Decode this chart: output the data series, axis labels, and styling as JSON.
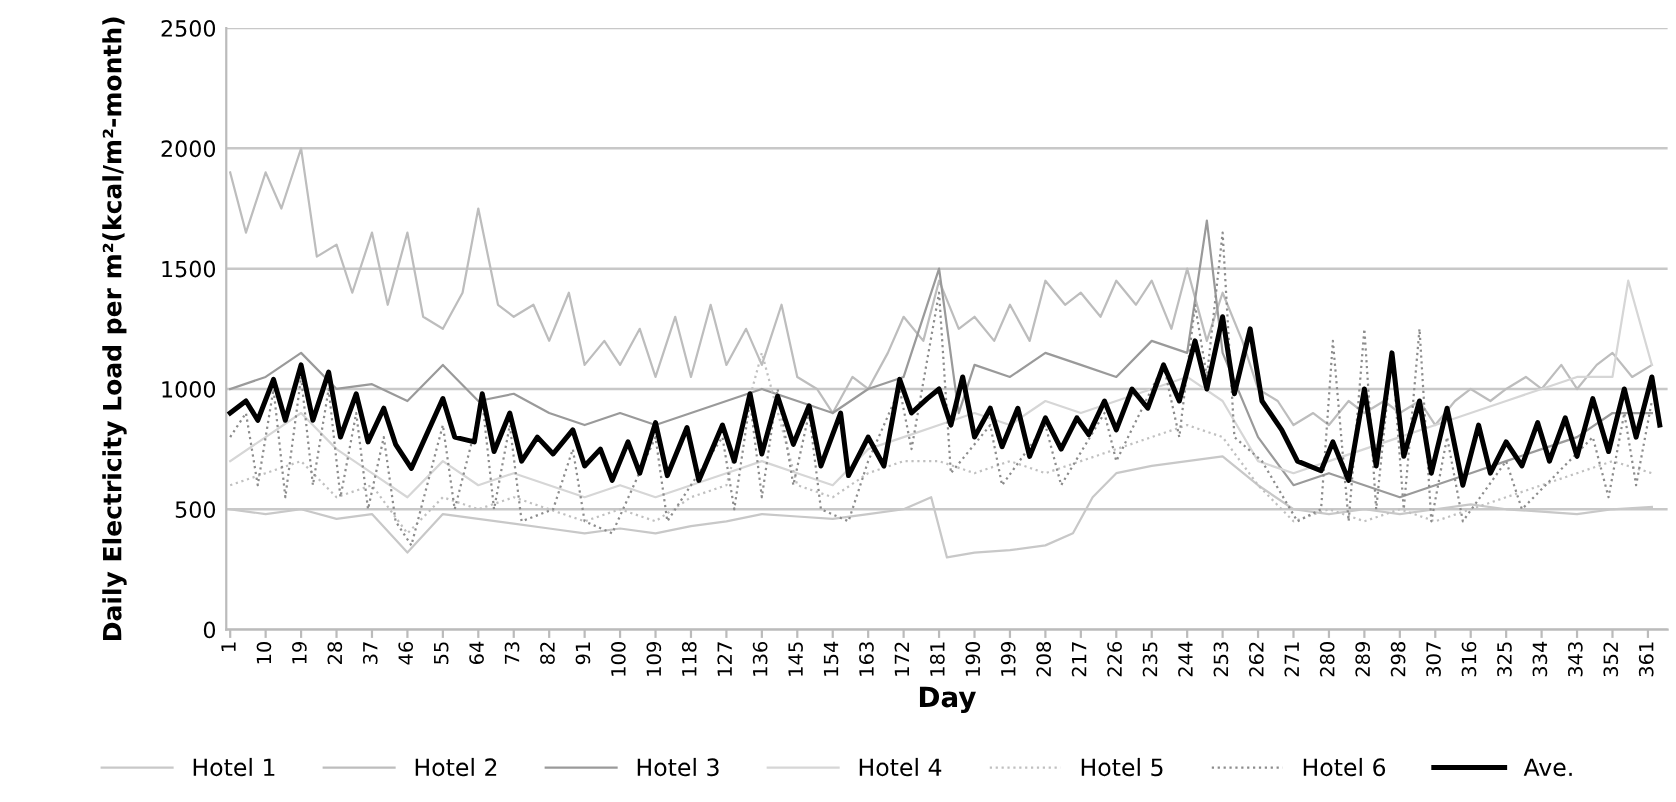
{
  "chart_data": {
    "type": "line",
    "xlabel": "Day",
    "ylabel": "Daily Electricity Load per m²(kcal/m²-month)",
    "xlim": [
      0,
      366
    ],
    "xticks": [
      1,
      10,
      19,
      28,
      37,
      46,
      55,
      64,
      73,
      82,
      91,
      100,
      109,
      118,
      127,
      136,
      145,
      154,
      163,
      172,
      181,
      190,
      199,
      208,
      217,
      226,
      235,
      244,
      253,
      262,
      271,
      280,
      289,
      298,
      307,
      316,
      325,
      334,
      343,
      352,
      361
    ],
    "ylim": [
      0,
      2500
    ],
    "yticks": [
      0,
      500,
      1000,
      1500,
      2000,
      2500
    ],
    "grid": "y",
    "legend": "bottom",
    "series": [
      {
        "name": "Hotel 1",
        "color": "#c8c8c8",
        "line_style": "solid",
        "x": [
          1,
          10,
          19,
          28,
          37,
          46,
          55,
          64,
          73,
          82,
          91,
          100,
          109,
          118,
          127,
          136,
          145,
          154,
          163,
          172,
          179,
          183,
          190,
          199,
          208,
          215,
          220,
          226,
          235,
          244,
          253,
          262,
          271,
          280,
          289,
          298,
          307,
          316,
          325,
          334,
          343,
          352,
          362
        ],
        "values": [
          500,
          480,
          500,
          460,
          480,
          320,
          480,
          460,
          440,
          420,
          400,
          420,
          400,
          430,
          450,
          480,
          470,
          460,
          480,
          500,
          550,
          300,
          320,
          330,
          350,
          400,
          550,
          650,
          680,
          700,
          720,
          600,
          500,
          480,
          500,
          480,
          500,
          520,
          500,
          490,
          480,
          500,
          510
        ]
      },
      {
        "name": "Hotel 2",
        "color": "#bdbdbd",
        "line_style": "solid",
        "x": [
          1,
          5,
          10,
          14,
          19,
          23,
          28,
          32,
          37,
          41,
          46,
          50,
          55,
          60,
          64,
          69,
          73,
          78,
          82,
          87,
          91,
          96,
          100,
          105,
          109,
          114,
          118,
          123,
          127,
          132,
          136,
          141,
          145,
          150,
          154,
          159,
          163,
          168,
          172,
          177,
          181,
          186,
          190,
          195,
          199,
          204,
          208,
          213,
          217,
          222,
          226,
          231,
          235,
          240,
          244,
          249,
          253,
          258,
          262,
          267,
          271,
          276,
          280,
          285,
          289,
          294,
          298,
          303,
          307,
          312,
          316,
          321,
          325,
          330,
          334,
          339,
          343,
          348,
          352,
          357,
          362
        ],
        "values": [
          1900,
          1650,
          1900,
          1750,
          2000,
          1550,
          1600,
          1400,
          1650,
          1350,
          1650,
          1300,
          1250,
          1400,
          1750,
          1350,
          1300,
          1350,
          1200,
          1400,
          1100,
          1200,
          1100,
          1250,
          1050,
          1300,
          1050,
          1350,
          1100,
          1250,
          1100,
          1350,
          1050,
          1000,
          900,
          1050,
          1000,
          1150,
          1300,
          1200,
          1450,
          1250,
          1300,
          1200,
          1350,
          1200,
          1450,
          1350,
          1400,
          1300,
          1450,
          1350,
          1450,
          1250,
          1500,
          1200,
          1400,
          1200,
          1000,
          950,
          850,
          900,
          850,
          950,
          900,
          950,
          900,
          950,
          850,
          950,
          1000,
          950,
          1000,
          1050,
          1000,
          1100,
          1000,
          1100,
          1150,
          1050,
          1100
        ]
      },
      {
        "name": "Hotel 3",
        "color": "#9a9a9a",
        "line_style": "solid",
        "x": [
          1,
          10,
          19,
          28,
          37,
          46,
          55,
          64,
          73,
          82,
          91,
          100,
          109,
          118,
          127,
          136,
          145,
          154,
          163,
          172,
          181,
          186,
          190,
          199,
          208,
          217,
          226,
          235,
          244,
          249,
          253,
          262,
          271,
          280,
          289,
          298,
          307,
          316,
          325,
          334,
          343,
          352,
          362
        ],
        "values": [
          1000,
          1050,
          1150,
          1000,
          1020,
          950,
          1100,
          950,
          980,
          900,
          850,
          900,
          850,
          900,
          950,
          1000,
          950,
          900,
          1000,
          1050,
          1500,
          900,
          1100,
          1050,
          1150,
          1100,
          1050,
          1200,
          1150,
          1700,
          1150,
          800,
          600,
          650,
          600,
          550,
          600,
          650,
          700,
          750,
          800,
          900,
          900
        ]
      },
      {
        "name": "Hotel 4",
        "color": "#d6d6d6",
        "line_style": "solid",
        "x": [
          1,
          10,
          19,
          28,
          37,
          46,
          55,
          64,
          73,
          82,
          91,
          100,
          109,
          118,
          127,
          136,
          145,
          154,
          163,
          172,
          181,
          190,
          199,
          208,
          217,
          226,
          235,
          244,
          253,
          262,
          271,
          280,
          289,
          298,
          307,
          316,
          325,
          334,
          343,
          352,
          356,
          362
        ],
        "values": [
          700,
          800,
          900,
          750,
          650,
          550,
          700,
          600,
          650,
          600,
          550,
          600,
          550,
          600,
          650,
          700,
          650,
          600,
          750,
          800,
          850,
          900,
          850,
          950,
          900,
          950,
          1000,
          1050,
          950,
          700,
          650,
          700,
          750,
          800,
          850,
          900,
          950,
          1000,
          1050,
          1050,
          1450,
          1100
        ]
      },
      {
        "name": "Hotel 5",
        "color": "#c0c0c0",
        "line_style": "dotted",
        "x": [
          1,
          10,
          19,
          28,
          37,
          46,
          55,
          64,
          73,
          82,
          91,
          100,
          109,
          118,
          127,
          136,
          145,
          154,
          163,
          172,
          181,
          190,
          199,
          208,
          217,
          226,
          235,
          244,
          253,
          262,
          271,
          280,
          289,
          298,
          307,
          316,
          325,
          334,
          343,
          352,
          362
        ],
        "values": [
          600,
          650,
          700,
          550,
          600,
          400,
          550,
          500,
          550,
          500,
          450,
          500,
          450,
          550,
          600,
          1150,
          600,
          550,
          650,
          700,
          700,
          650,
          700,
          650,
          700,
          750,
          800,
          850,
          800,
          600,
          450,
          500,
          450,
          500,
          450,
          500,
          550,
          600,
          650,
          700,
          650
        ]
      },
      {
        "name": "Hotel 6",
        "color": "#8c8c8c",
        "line_style": "dotted",
        "x": [
          1,
          5,
          8,
          12,
          15,
          19,
          22,
          26,
          29,
          33,
          36,
          40,
          43,
          47,
          55,
          58,
          65,
          68,
          72,
          75,
          83,
          88,
          91,
          98,
          109,
          112,
          126,
          129,
          133,
          136,
          140,
          144,
          148,
          151,
          158,
          163,
          171,
          174,
          181,
          184,
          194,
          197,
          208,
          212,
          223,
          226,
          238,
          242,
          246,
          249,
          253,
          256,
          263,
          272,
          278,
          281,
          285,
          289,
          292,
          296,
          299,
          303,
          306,
          310,
          314,
          325,
          329,
          347,
          351,
          355,
          358,
          362
        ],
        "values": [
          800,
          900,
          600,
          1000,
          550,
          1050,
          600,
          1000,
          550,
          900,
          500,
          800,
          450,
          350,
          850,
          500,
          950,
          500,
          850,
          450,
          500,
          750,
          450,
          400,
          800,
          450,
          800,
          500,
          950,
          550,
          1000,
          600,
          900,
          500,
          450,
          700,
          1000,
          750,
          1400,
          650,
          850,
          600,
          850,
          600,
          900,
          700,
          1100,
          800,
          1350,
          1050,
          1650,
          800,
          700,
          450,
          500,
          1200,
          450,
          1250,
          500,
          1150,
          500,
          1250,
          450,
          800,
          450,
          700,
          500,
          800,
          550,
          900,
          600,
          950
        ]
      },
      {
        "name": "Ave.",
        "color": "#000000",
        "line_style": "solid",
        "x": [
          1,
          5,
          8,
          12,
          15,
          19,
          22,
          26,
          29,
          33,
          36,
          40,
          43,
          47,
          55,
          58,
          63,
          65,
          68,
          72,
          75,
          79,
          83,
          88,
          91,
          95,
          98,
          102,
          105,
          109,
          112,
          117,
          120,
          126,
          129,
          133,
          136,
          140,
          144,
          148,
          151,
          156,
          158,
          163,
          167,
          171,
          174,
          178,
          181,
          184,
          187,
          190,
          194,
          197,
          201,
          204,
          208,
          212,
          216,
          219,
          223,
          226,
          230,
          234,
          238,
          242,
          246,
          249,
          253,
          256,
          260,
          263,
          268,
          272,
          278,
          281,
          285,
          289,
          292,
          296,
          299,
          303,
          306,
          310,
          314,
          318,
          321,
          325,
          329,
          333,
          336,
          340,
          343,
          347,
          351,
          355,
          358,
          362,
          364
        ],
        "values": [
          900,
          950,
          870,
          1040,
          870,
          1100,
          870,
          1070,
          800,
          980,
          780,
          920,
          770,
          670,
          960,
          800,
          780,
          980,
          740,
          900,
          700,
          800,
          730,
          830,
          680,
          750,
          620,
          780,
          650,
          860,
          640,
          840,
          620,
          850,
          700,
          980,
          730,
          970,
          770,
          930,
          680,
          900,
          640,
          800,
          680,
          1040,
          900,
          960,
          1000,
          850,
          1050,
          800,
          920,
          760,
          920,
          720,
          880,
          750,
          880,
          810,
          950,
          830,
          1000,
          920,
          1100,
          950,
          1200,
          1000,
          1300,
          980,
          1250,
          950,
          830,
          700,
          660,
          780,
          620,
          1000,
          680,
          1150,
          720,
          950,
          650,
          920,
          600,
          850,
          650,
          780,
          680,
          860,
          700,
          880,
          720,
          960,
          740,
          1000,
          800,
          1050,
          850
        ]
      }
    ]
  }
}
